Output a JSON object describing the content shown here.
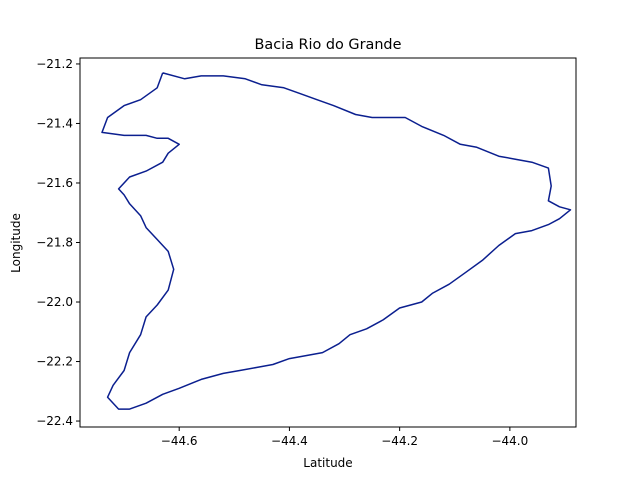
{
  "chart_data": {
    "type": "line",
    "title": "Bacia Rio do Grande",
    "xlabel": "Latitude",
    "ylabel": "Longitude",
    "xlim": [
      -44.78,
      -43.88
    ],
    "ylim": [
      -22.42,
      -21.18
    ],
    "xticks": [
      -44.6,
      -44.4,
      -44.2,
      -44.0
    ],
    "xtick_labels": [
      "−44.6",
      "−44.4",
      "−44.2",
      "−44.0"
    ],
    "yticks": [
      -21.2,
      -21.4,
      -21.6,
      -21.8,
      -22.0,
      -22.2,
      -22.4
    ],
    "ytick_labels": [
      "−21.2",
      "−21.4",
      "−21.6",
      "−21.8",
      "−22.0",
      "−22.2",
      "−22.4"
    ],
    "grid": false,
    "series": [
      {
        "color": "#0b1f8f",
        "x": [
          -44.63,
          -44.59,
          -44.56,
          -44.52,
          -44.48,
          -44.45,
          -44.41,
          -44.38,
          -44.35,
          -44.32,
          -44.28,
          -44.25,
          -44.22,
          -44.19,
          -44.16,
          -44.12,
          -44.09,
          -44.06,
          -44.02,
          -43.99,
          -43.96,
          -43.93,
          -43.925,
          -43.93,
          -43.91,
          -43.89,
          -43.91,
          -43.93,
          -43.96,
          -43.99,
          -44.02,
          -44.05,
          -44.08,
          -44.11,
          -44.14,
          -44.16,
          -44.2,
          -44.23,
          -44.26,
          -44.29,
          -44.31,
          -44.34,
          -44.37,
          -44.4,
          -44.43,
          -44.46,
          -44.49,
          -44.52,
          -44.56,
          -44.6,
          -44.63,
          -44.66,
          -44.69,
          -44.71,
          -44.73,
          -44.72,
          -44.7,
          -44.69,
          -44.67,
          -44.66,
          -44.64,
          -44.62,
          -44.61,
          -44.62,
          -44.64,
          -44.66,
          -44.67,
          -44.69,
          -44.7,
          -44.71,
          -44.69,
          -44.66,
          -44.63,
          -44.62,
          -44.6,
          -44.61,
          -44.62,
          -44.64,
          -44.66,
          -44.7,
          -44.74,
          -44.73,
          -44.7,
          -44.67,
          -44.64,
          -44.63
        ],
        "y": [
          -21.23,
          -21.25,
          -21.24,
          -21.24,
          -21.25,
          -21.27,
          -21.28,
          -21.3,
          -21.32,
          -21.34,
          -21.37,
          -21.38,
          -21.38,
          -21.38,
          -21.41,
          -21.44,
          -21.47,
          -21.48,
          -21.51,
          -21.52,
          -21.53,
          -21.55,
          -21.61,
          -21.66,
          -21.68,
          -21.69,
          -21.72,
          -21.74,
          -21.76,
          -21.77,
          -21.81,
          -21.86,
          -21.9,
          -21.94,
          -21.97,
          -22.0,
          -22.02,
          -22.06,
          -22.09,
          -22.11,
          -22.14,
          -22.17,
          -22.18,
          -22.19,
          -22.21,
          -22.22,
          -22.23,
          -22.24,
          -22.26,
          -22.29,
          -22.31,
          -22.34,
          -22.36,
          -22.36,
          -22.32,
          -22.28,
          -22.23,
          -22.17,
          -22.11,
          -22.05,
          -22.01,
          -21.96,
          -21.89,
          -21.83,
          -21.79,
          -21.75,
          -21.71,
          -21.67,
          -21.64,
          -21.62,
          -21.58,
          -21.56,
          -21.53,
          -21.5,
          -21.47,
          -21.46,
          -21.45,
          -21.45,
          -21.44,
          -21.44,
          -21.43,
          -21.38,
          -21.34,
          -21.32,
          -21.28,
          -21.23
        ]
      }
    ]
  }
}
